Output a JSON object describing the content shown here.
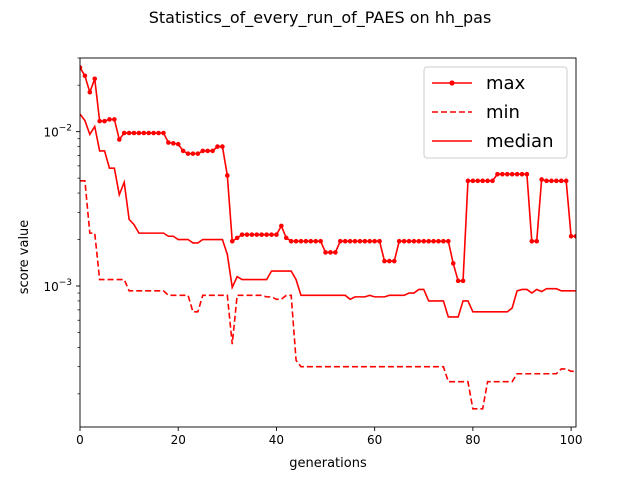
{
  "chart_data": {
    "type": "line",
    "title": "Statistics_of_every_run_of_PAES on hh_pas",
    "xlabel": "generations",
    "ylabel": "score value",
    "xlim": [
      0,
      101
    ],
    "ylim": [
      0.000122,
      0.03
    ],
    "yscale": "log",
    "grid": false,
    "legend_position": "top-right",
    "x_ticks": [
      0,
      20,
      40,
      60,
      80,
      100
    ],
    "x_tick_labels": [
      "0",
      "20",
      "40",
      "60",
      "80",
      "100"
    ],
    "y_ticks": [
      0.001,
      0.01
    ],
    "y_tick_exponents": [
      "-3",
      "-2"
    ],
    "y_tick_base": "10",
    "colors": {
      "series": "#ff0000",
      "axes": "#000000",
      "background": "#ffffff"
    },
    "series": [
      {
        "name": "max",
        "style": "solid-with-dot-markers",
        "points": [
          [
            0,
            0.026
          ],
          [
            1,
            0.023
          ],
          [
            2,
            0.018
          ],
          [
            3,
            0.022
          ],
          [
            4,
            0.0117
          ],
          [
            5,
            0.0117
          ],
          [
            6,
            0.012
          ],
          [
            7,
            0.012
          ],
          [
            8,
            0.0089
          ],
          [
            9,
            0.0098
          ],
          [
            10,
            0.0098
          ],
          [
            11,
            0.0098
          ],
          [
            12,
            0.0098
          ],
          [
            13,
            0.0098
          ],
          [
            14,
            0.0098
          ],
          [
            15,
            0.0098
          ],
          [
            16,
            0.0098
          ],
          [
            17,
            0.0098
          ],
          [
            18,
            0.0085
          ],
          [
            19,
            0.0084
          ],
          [
            20,
            0.0083
          ],
          [
            21,
            0.0075
          ],
          [
            22,
            0.0072
          ],
          [
            23,
            0.0072
          ],
          [
            24,
            0.0072
          ],
          [
            25,
            0.0075
          ],
          [
            26,
            0.0075
          ],
          [
            27,
            0.0075
          ],
          [
            28,
            0.008
          ],
          [
            29,
            0.008
          ],
          [
            30,
            0.0052
          ],
          [
            31,
            0.00195
          ],
          [
            32,
            0.00205
          ],
          [
            33,
            0.00215
          ],
          [
            34,
            0.00215
          ],
          [
            35,
            0.00215
          ],
          [
            36,
            0.00215
          ],
          [
            37,
            0.00215
          ],
          [
            38,
            0.00215
          ],
          [
            39,
            0.00215
          ],
          [
            40,
            0.00215
          ],
          [
            41,
            0.00245
          ],
          [
            42,
            0.00205
          ],
          [
            43,
            0.00195
          ],
          [
            44,
            0.00195
          ],
          [
            45,
            0.00195
          ],
          [
            46,
            0.00195
          ],
          [
            47,
            0.00195
          ],
          [
            48,
            0.00195
          ],
          [
            49,
            0.00195
          ],
          [
            50,
            0.00165
          ],
          [
            51,
            0.00165
          ],
          [
            52,
            0.00165
          ],
          [
            53,
            0.00195
          ],
          [
            54,
            0.00195
          ],
          [
            55,
            0.00195
          ],
          [
            56,
            0.00195
          ],
          [
            57,
            0.00195
          ],
          [
            58,
            0.00195
          ],
          [
            59,
            0.00195
          ],
          [
            60,
            0.00195
          ],
          [
            61,
            0.00195
          ],
          [
            62,
            0.00145
          ],
          [
            63,
            0.00145
          ],
          [
            64,
            0.00145
          ],
          [
            65,
            0.00195
          ],
          [
            66,
            0.00195
          ],
          [
            67,
            0.00195
          ],
          [
            68,
            0.00195
          ],
          [
            69,
            0.00195
          ],
          [
            70,
            0.00195
          ],
          [
            71,
            0.00195
          ],
          [
            72,
            0.00195
          ],
          [
            73,
            0.00195
          ],
          [
            74,
            0.00195
          ],
          [
            75,
            0.00195
          ],
          [
            76,
            0.0014
          ],
          [
            77,
            0.00108
          ],
          [
            78,
            0.00108
          ],
          [
            79,
            0.0048
          ],
          [
            80,
            0.0048
          ],
          [
            81,
            0.0048
          ],
          [
            82,
            0.0048
          ],
          [
            83,
            0.0048
          ],
          [
            84,
            0.0048
          ],
          [
            85,
            0.0053
          ],
          [
            86,
            0.0053
          ],
          [
            87,
            0.0053
          ],
          [
            88,
            0.0053
          ],
          [
            89,
            0.0053
          ],
          [
            90,
            0.0053
          ],
          [
            91,
            0.0053
          ],
          [
            92,
            0.00195
          ],
          [
            93,
            0.00195
          ],
          [
            94,
            0.0049
          ],
          [
            95,
            0.0048
          ],
          [
            96,
            0.0048
          ],
          [
            97,
            0.0048
          ],
          [
            98,
            0.0048
          ],
          [
            99,
            0.0048
          ],
          [
            100,
            0.0021
          ],
          [
            101,
            0.0021
          ]
        ]
      },
      {
        "name": "min",
        "style": "dashed",
        "points": [
          [
            0,
            0.0048
          ],
          [
            1,
            0.0048
          ],
          [
            2,
            0.0022
          ],
          [
            3,
            0.0022
          ],
          [
            4,
            0.0011
          ],
          [
            5,
            0.0011
          ],
          [
            9,
            0.0011
          ],
          [
            10,
            0.00093
          ],
          [
            11,
            0.00093
          ],
          [
            17,
            0.00093
          ],
          [
            18,
            0.00087
          ],
          [
            19,
            0.00087
          ],
          [
            22,
            0.00087
          ],
          [
            23,
            0.00068
          ],
          [
            24,
            0.00068
          ],
          [
            25,
            0.00087
          ],
          [
            26,
            0.00087
          ],
          [
            30,
            0.00087
          ],
          [
            31,
            0.00042
          ],
          [
            32,
            0.00087
          ],
          [
            33,
            0.00087
          ],
          [
            37,
            0.00087
          ],
          [
            38,
            0.00085
          ],
          [
            39,
            0.00085
          ],
          [
            40,
            0.00082
          ],
          [
            41,
            0.00082
          ],
          [
            42,
            0.00087
          ],
          [
            43,
            0.00087
          ],
          [
            44,
            0.00033
          ],
          [
            45,
            0.0003
          ],
          [
            46,
            0.0003
          ],
          [
            74,
            0.0003
          ],
          [
            75,
            0.00024
          ],
          [
            76,
            0.00024
          ],
          [
            79,
            0.00024
          ],
          [
            80,
            0.00016
          ],
          [
            81,
            0.00016
          ],
          [
            82,
            0.00016
          ],
          [
            83,
            0.00024
          ],
          [
            84,
            0.00024
          ],
          [
            88,
            0.00024
          ],
          [
            89,
            0.00027
          ],
          [
            90,
            0.00027
          ],
          [
            97,
            0.00027
          ],
          [
            98,
            0.00029
          ],
          [
            99,
            0.00029
          ],
          [
            100,
            0.00028
          ],
          [
            101,
            0.00028
          ]
        ]
      },
      {
        "name": "median",
        "style": "solid",
        "points": [
          [
            0,
            0.013
          ],
          [
            1,
            0.0118
          ],
          [
            2,
            0.0096
          ],
          [
            3,
            0.0108
          ],
          [
            4,
            0.0075
          ],
          [
            5,
            0.0075
          ],
          [
            6,
            0.0058
          ],
          [
            7,
            0.0058
          ],
          [
            8,
            0.0039
          ],
          [
            9,
            0.0047
          ],
          [
            10,
            0.0027
          ],
          [
            11,
            0.0025
          ],
          [
            12,
            0.0022
          ],
          [
            13,
            0.0022
          ],
          [
            14,
            0.0022
          ],
          [
            15,
            0.0022
          ],
          [
            16,
            0.0022
          ],
          [
            17,
            0.0022
          ],
          [
            18,
            0.0021
          ],
          [
            19,
            0.0021
          ],
          [
            20,
            0.002
          ],
          [
            21,
            0.002
          ],
          [
            22,
            0.002
          ],
          [
            23,
            0.0019
          ],
          [
            24,
            0.0019
          ],
          [
            25,
            0.002
          ],
          [
            26,
            0.002
          ],
          [
            27,
            0.002
          ],
          [
            28,
            0.002
          ],
          [
            29,
            0.002
          ],
          [
            30,
            0.0016
          ],
          [
            31,
            0.00098
          ],
          [
            32,
            0.00115
          ],
          [
            33,
            0.0011
          ],
          [
            34,
            0.0011
          ],
          [
            35,
            0.0011
          ],
          [
            36,
            0.0011
          ],
          [
            37,
            0.0011
          ],
          [
            38,
            0.0011
          ],
          [
            39,
            0.00125
          ],
          [
            40,
            0.00125
          ],
          [
            41,
            0.00125
          ],
          [
            42,
            0.00125
          ],
          [
            43,
            0.00125
          ],
          [
            44,
            0.0011
          ],
          [
            45,
            0.00087
          ],
          [
            46,
            0.00087
          ],
          [
            47,
            0.00087
          ],
          [
            48,
            0.00087
          ],
          [
            49,
            0.00087
          ],
          [
            50,
            0.00087
          ],
          [
            51,
            0.00087
          ],
          [
            52,
            0.00087
          ],
          [
            53,
            0.00087
          ],
          [
            54,
            0.00087
          ],
          [
            55,
            0.00082
          ],
          [
            56,
            0.00085
          ],
          [
            57,
            0.00085
          ],
          [
            58,
            0.00085
          ],
          [
            59,
            0.00087
          ],
          [
            60,
            0.00085
          ],
          [
            61,
            0.00085
          ],
          [
            62,
            0.00085
          ],
          [
            63,
            0.00087
          ],
          [
            64,
            0.00087
          ],
          [
            65,
            0.00087
          ],
          [
            66,
            0.00087
          ],
          [
            67,
            0.0009
          ],
          [
            68,
            0.0009
          ],
          [
            69,
            0.00095
          ],
          [
            70,
            0.00095
          ],
          [
            71,
            0.0008
          ],
          [
            72,
            0.0008
          ],
          [
            73,
            0.0008
          ],
          [
            74,
            0.0008
          ],
          [
            75,
            0.00063
          ],
          [
            76,
            0.00063
          ],
          [
            77,
            0.00063
          ],
          [
            78,
            0.0008
          ],
          [
            79,
            0.0008
          ],
          [
            80,
            0.00068
          ],
          [
            81,
            0.00068
          ],
          [
            82,
            0.00068
          ],
          [
            83,
            0.00068
          ],
          [
            84,
            0.00068
          ],
          [
            85,
            0.00068
          ],
          [
            86,
            0.00068
          ],
          [
            87,
            0.00068
          ],
          [
            88,
            0.00072
          ],
          [
            89,
            0.00093
          ],
          [
            90,
            0.00095
          ],
          [
            91,
            0.00095
          ],
          [
            92,
            0.0009
          ],
          [
            93,
            0.00095
          ],
          [
            94,
            0.00092
          ],
          [
            95,
            0.00096
          ],
          [
            96,
            0.00096
          ],
          [
            97,
            0.00096
          ],
          [
            98,
            0.00093
          ],
          [
            99,
            0.00093
          ],
          [
            100,
            0.00093
          ],
          [
            101,
            0.00093
          ]
        ]
      }
    ]
  }
}
